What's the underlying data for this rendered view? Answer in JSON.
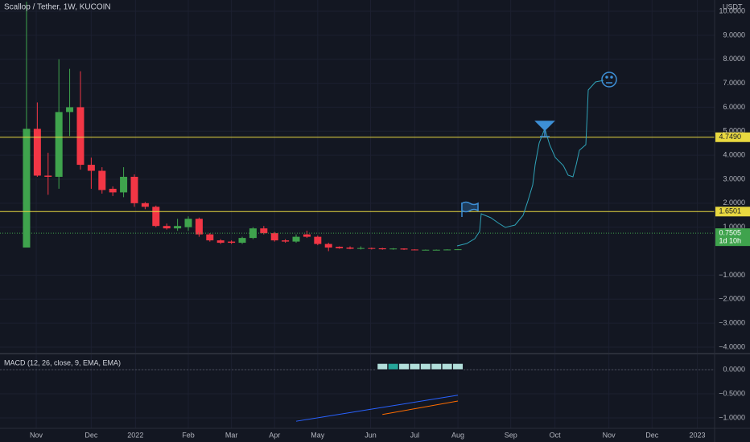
{
  "chart_data": [
    {
      "type": "candlestick",
      "title": "Scallop / Tether, 1W, KUCOIN",
      "y_axis_label": "USDT",
      "up_color": "#3fa34d",
      "down_color": "#f23645",
      "x": [
        0,
        1,
        2,
        3,
        4,
        5,
        6,
        7,
        8,
        9,
        10,
        11,
        12,
        13,
        14,
        15,
        16,
        17,
        18,
        19,
        20,
        21,
        22,
        23,
        24,
        25,
        26,
        27,
        28,
        29,
        30,
        31,
        32,
        33,
        34,
        35,
        36,
        37,
        38,
        39,
        40
      ],
      "open": [
        0.15,
        5.1,
        3.15,
        3.1,
        5.8,
        6.0,
        3.6,
        3.35,
        2.6,
        2.45,
        3.1,
        2.0,
        1.85,
        1.05,
        0.95,
        1.0,
        1.35,
        0.7,
        0.45,
        0.4,
        0.35,
        0.55,
        0.95,
        0.75,
        0.45,
        0.4,
        0.7,
        0.6,
        0.3,
        0.18,
        0.15,
        0.1,
        0.13,
        0.12,
        0.08,
        0.11,
        0.07,
        0.05,
        0.06,
        0.06,
        0.07
      ],
      "high": [
        10.4,
        6.2,
        4.1,
        8.0,
        7.6,
        7.5,
        3.9,
        3.5,
        2.7,
        3.5,
        3.2,
        2.05,
        1.9,
        1.15,
        1.35,
        1.45,
        1.4,
        0.75,
        0.5,
        0.45,
        0.6,
        1.0,
        1.05,
        0.8,
        0.5,
        0.7,
        0.85,
        0.65,
        0.35,
        0.2,
        0.2,
        0.2,
        0.15,
        0.14,
        0.13,
        0.12,
        0.08,
        0.07,
        0.07,
        0.08,
        0.09
      ],
      "low": [
        0.15,
        3.1,
        2.35,
        2.6,
        4.8,
        3.4,
        2.6,
        2.4,
        2.3,
        2.25,
        1.85,
        1.75,
        1.0,
        0.9,
        0.85,
        0.85,
        0.6,
        0.4,
        0.3,
        0.3,
        0.3,
        0.5,
        0.7,
        0.4,
        0.35,
        0.35,
        0.55,
        0.25,
        0.0,
        0.1,
        0.08,
        0.07,
        0.07,
        0.06,
        0.06,
        0.05,
        0.04,
        0.04,
        0.05,
        0.05,
        0.06
      ],
      "close": [
        5.1,
        3.15,
        3.1,
        5.8,
        6.0,
        3.6,
        3.35,
        2.55,
        2.45,
        3.1,
        2.0,
        1.85,
        1.05,
        0.95,
        1.05,
        1.35,
        0.7,
        0.45,
        0.35,
        0.35,
        0.55,
        0.95,
        0.75,
        0.45,
        0.4,
        0.6,
        0.6,
        0.3,
        0.15,
        0.12,
        0.1,
        0.13,
        0.1,
        0.08,
        0.11,
        0.07,
        0.05,
        0.06,
        0.06,
        0.07,
        0.08
      ],
      "xlim": [
        -2.46,
        63.8
      ],
      "xticks": [
        {
          "value": 0.9,
          "label": "Nov"
        },
        {
          "value": 6.0,
          "label": "Dec"
        },
        {
          "value": 10.1,
          "label": "2022"
        },
        {
          "value": 15.0,
          "label": "Feb"
        },
        {
          "value": 19.0,
          "label": "Mar"
        },
        {
          "value": 23.0,
          "label": "Apr"
        },
        {
          "value": 27.0,
          "label": "May"
        },
        {
          "value": 31.9,
          "label": "Jun"
        },
        {
          "value": 36.0,
          "label": "Jul"
        },
        {
          "value": 40.0,
          "label": "Aug"
        },
        {
          "value": 44.9,
          "label": "Sep"
        },
        {
          "value": 49.0,
          "label": "Oct"
        },
        {
          "value": 54.0,
          "label": "Nov"
        },
        {
          "value": 58.0,
          "label": "Dec"
        },
        {
          "value": 62.2,
          "label": "2023"
        }
      ],
      "ylim": [
        -4.27,
        10.47
      ],
      "yticks": [
        {
          "value": 10,
          "label": "10.0000"
        },
        {
          "value": 9,
          "label": "9.0000"
        },
        {
          "value": 8,
          "label": "8.0000"
        },
        {
          "value": 7,
          "label": "7.0000"
        },
        {
          "value": 6,
          "label": "6.0000"
        },
        {
          "value": 5,
          "label": "5.0000"
        },
        {
          "value": 4,
          "label": "4.0000"
        },
        {
          "value": 3,
          "label": "3.0000"
        },
        {
          "value": 2,
          "label": "2.0000"
        },
        {
          "value": 1,
          "label": "1.0000"
        },
        {
          "value": -1,
          "label": "−1.0000"
        },
        {
          "value": -2,
          "label": "−2.0000"
        },
        {
          "value": -3,
          "label": "−3.0000"
        },
        {
          "value": -4,
          "label": "−4.0000"
        }
      ],
      "grid": true,
      "hlines": [
        {
          "value": 4.749,
          "label": "4.7490",
          "color": "#e8d840"
        },
        {
          "value": 1.6501,
          "label": "1.6501",
          "color": "#e8d840"
        }
      ],
      "last_price": {
        "value": 0.7505,
        "label": "0.7505",
        "countdown": "1d 10h",
        "color": "#3fa34d"
      }
    },
    {
      "type": "macd",
      "title": "MACD (12, 26, close, 9, EMA, EMA)",
      "ylim": [
        -1.217,
        0.317
      ],
      "yticks": [
        {
          "value": 0,
          "label": "0.0000"
        },
        {
          "value": -0.5,
          "label": "−0.5000"
        },
        {
          "value": -1,
          "label": "−1.0000"
        }
      ],
      "histogram": {
        "x": [
          33,
          34,
          35,
          36,
          37,
          38,
          39,
          40
        ],
        "values": [
          0.13,
          0.13,
          0.13,
          0.13,
          0.13,
          0.13,
          0.13,
          0.13
        ],
        "colors": [
          "#b2dfdb",
          "#26a69a",
          "#b2dfdb",
          "#b2dfdb",
          "#b2dfdb",
          "#b2dfdb",
          "#b2dfdb",
          "#b2dfdb"
        ]
      },
      "series": [
        {
          "color": "#2962ff",
          "x": [
            25,
            40
          ],
          "values": [
            -1.07,
            -0.53
          ]
        },
        {
          "color": "#ff6d00",
          "x": [
            33,
            40
          ],
          "values": [
            -0.93,
            -0.65
          ]
        }
      ]
    }
  ]
}
